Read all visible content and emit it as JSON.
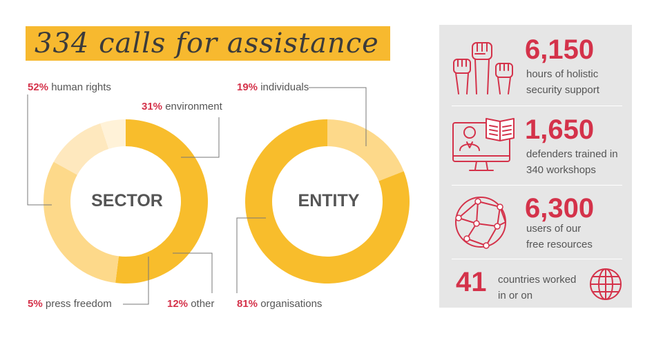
{
  "title": "334 calls for assistance",
  "sector": {
    "center_label": "SECTOR",
    "labels": {
      "human_rights": {
        "pct": "52%",
        "text": "human rights"
      },
      "environment": {
        "pct": "31%",
        "text": "environment"
      },
      "press_freedom": {
        "pct": "5%",
        "text": "press freedom"
      },
      "other": {
        "pct": "12%",
        "text": "other"
      }
    }
  },
  "entity": {
    "center_label": "ENTITY",
    "labels": {
      "individuals": {
        "pct": "19%",
        "text": "individuals"
      },
      "organisations": {
        "pct": "81%",
        "text": "organisations"
      }
    }
  },
  "chart_data": [
    {
      "type": "pie",
      "title": "SECTOR",
      "categories": [
        "human rights",
        "environment",
        "other",
        "press freedom"
      ],
      "values": [
        52,
        31,
        12,
        5
      ],
      "colors": [
        "#f8bd2c",
        "#fdd98a",
        "#fee8be",
        "#fff2d8"
      ]
    },
    {
      "type": "pie",
      "title": "ENTITY",
      "categories": [
        "individuals",
        "organisations"
      ],
      "values": [
        19,
        81
      ],
      "colors": [
        "#fdd98a",
        "#f8bd2c"
      ]
    }
  ],
  "stats": [
    {
      "number": "6,150",
      "line1": "hours of holistic",
      "line2": "security support",
      "icon": "raised-fists-icon"
    },
    {
      "number": "1,650",
      "line1": "defenders trained in",
      "line2": "340 workshops",
      "icon": "online-training-icon"
    },
    {
      "number": "6,300",
      "line1": "users of our",
      "line2": "free resources",
      "icon": "network-globe-icon"
    },
    {
      "number": "41",
      "line1": "countries worked",
      "line2": "in or on",
      "icon": "globe-icon"
    }
  ],
  "colors": {
    "accent": "#d4324a",
    "title_band": "#f7b92f",
    "panel": "#e6e6e6"
  }
}
